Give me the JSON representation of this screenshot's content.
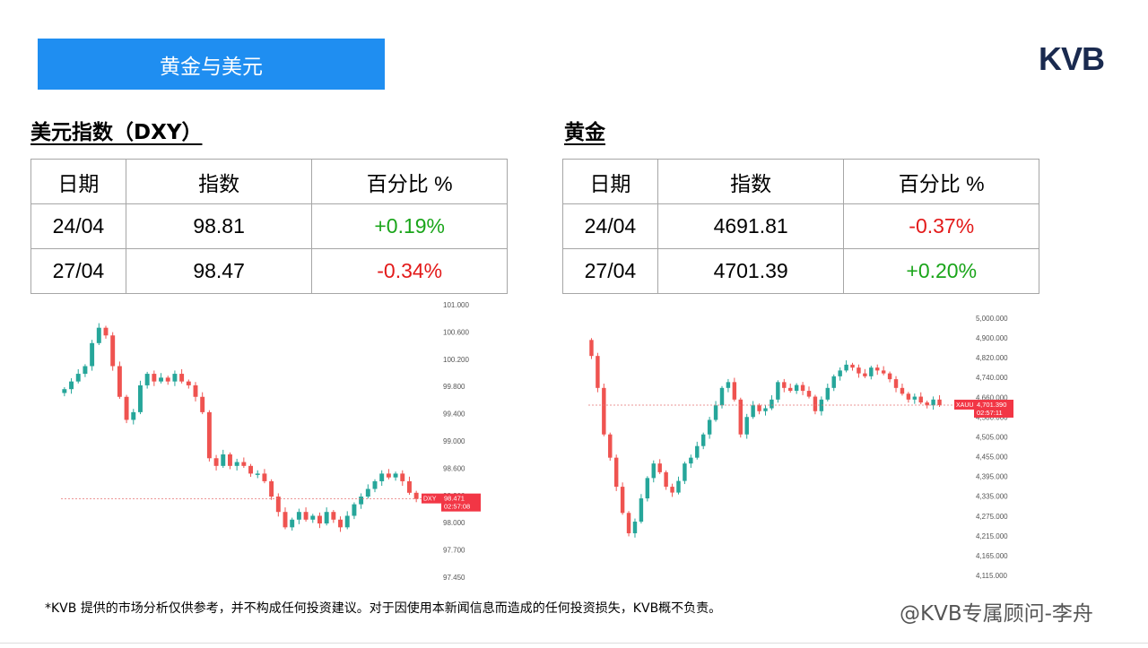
{
  "header": {
    "title": "黄金与美元",
    "brand": "KVB"
  },
  "dxy": {
    "title": "美元指数（DXY）",
    "columns": [
      "日期",
      "指数",
      "百分比 %"
    ],
    "rows": [
      {
        "date": "24/04",
        "value": "98.81",
        "pct": "+0.19%",
        "dir": "up"
      },
      {
        "date": "27/04",
        "value": "98.47",
        "pct": "-0.34%",
        "dir": "down"
      }
    ]
  },
  "gold": {
    "title": "黄金",
    "columns": [
      "日期",
      "指数",
      "百分比 %"
    ],
    "rows": [
      {
        "date": "24/04",
        "value": "4691.81",
        "pct": "-0.37%",
        "dir": "down"
      },
      {
        "date": "27/04",
        "value": "4701.39",
        "pct": "+0.20%",
        "dir": "up"
      }
    ]
  },
  "chart_data": [
    {
      "type": "candlestick",
      "symbol": "DXY",
      "last_price": "98.471",
      "countdown": "02:57:08",
      "y_ticks": [
        "101.000",
        "100.600",
        "100.200",
        "99.800",
        "99.400",
        "99.000",
        "98.600",
        "98.300",
        "98.000",
        "97.700",
        "97.450"
      ],
      "ylim": [
        97.45,
        101.0
      ],
      "close_path": [
        99.9,
        100.0,
        100.1,
        100.2,
        100.5,
        100.7,
        100.6,
        100.2,
        99.8,
        99.5,
        99.6,
        99.95,
        100.1,
        100.0,
        100.05,
        100.0,
        100.1,
        100.0,
        99.95,
        99.8,
        99.6,
        99.0,
        98.9,
        99.05,
        98.9,
        98.95,
        98.9,
        98.8,
        98.8,
        98.7,
        98.5,
        98.3,
        98.1,
        98.2,
        98.3,
        98.2,
        98.25,
        98.15,
        98.3,
        98.2,
        98.1,
        98.25,
        98.4,
        98.5,
        98.6,
        98.7,
        98.8,
        98.75,
        98.8,
        98.7,
        98.55,
        98.47
      ],
      "color_up": "#26a69a",
      "color_down": "#ef5350"
    },
    {
      "type": "candlestick",
      "symbol": "XAUUSD",
      "last_price": "4,701.390",
      "countdown": "02:57:11",
      "y_ticks": [
        "5,000.000",
        "4,900.000",
        "4,820.000",
        "4,740.000",
        "4,660.000",
        "4,580.000",
        "4,505.000",
        "4,455.000",
        "4,395.000",
        "4,335.000",
        "4,275.000",
        "4,215.000",
        "4,165.000",
        "4,115.000"
      ],
      "ylim": [
        4115,
        5000
      ],
      "close_path": [
        4870,
        4760,
        4600,
        4520,
        4420,
        4330,
        4260,
        4300,
        4380,
        4450,
        4500,
        4470,
        4420,
        4400,
        4440,
        4500,
        4520,
        4560,
        4600,
        4650,
        4700,
        4760,
        4780,
        4720,
        4600,
        4660,
        4700,
        4680,
        4690,
        4720,
        4780,
        4760,
        4750,
        4770,
        4750,
        4730,
        4680,
        4720,
        4760,
        4800,
        4820,
        4840,
        4830,
        4810,
        4800,
        4830,
        4820,
        4810,
        4790,
        4760,
        4740,
        4720,
        4730,
        4710,
        4700,
        4720,
        4701
      ],
      "color_up": "#26a69a",
      "color_down": "#ef5350"
    }
  ],
  "disclaimer": "*KVB 提供的市场分析仅供参考，并不构成任何投资建议。对于因使用本新闻信息而造成的任何投资损失，KVB概不负责。",
  "watermark": "@KVB专属顾问-李舟"
}
